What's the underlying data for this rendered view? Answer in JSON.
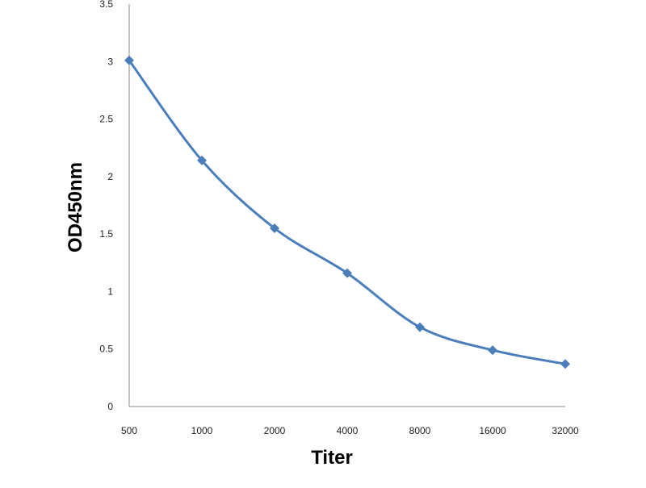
{
  "chart_data": {
    "type": "line",
    "categories": [
      "500",
      "1000",
      "2000",
      "4000",
      "8000",
      "16000",
      "32000"
    ],
    "series": [
      {
        "values": [
          3.01,
          2.14,
          1.55,
          1.16,
          0.69,
          0.49,
          0.37
        ]
      }
    ],
    "xlabel": "Titer",
    "ylabel": "OD450nm",
    "ylim": [
      0,
      3.5
    ],
    "yticks": [
      "0",
      "0.5",
      "1",
      "1.5",
      "2",
      "2.5",
      "3",
      "3.5"
    ],
    "grid": false,
    "legend": "none",
    "line_color": "#4a7ebb",
    "marker": "diamond"
  }
}
